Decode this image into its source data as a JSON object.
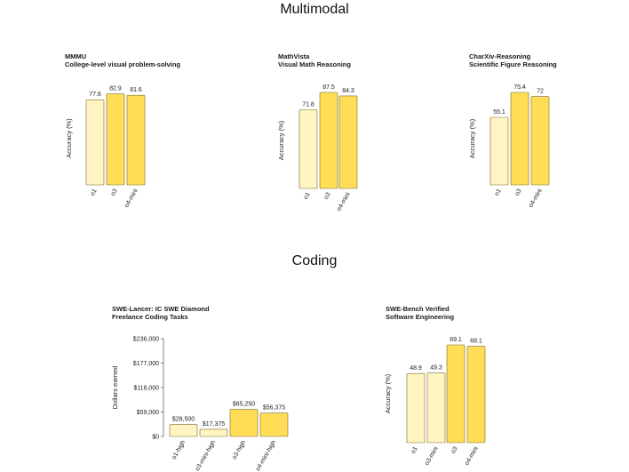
{
  "sections": [
    {
      "title": "Multimodal"
    },
    {
      "title": "Coding"
    }
  ],
  "colors": {
    "light": "#fff4c2",
    "dark": "#ffdd57",
    "stroke": "#7a6a2a"
  },
  "chart_data": [
    {
      "type": "bar",
      "title": "MMMU",
      "subtitle": "College-level visual problem-solving",
      "ylabel": "Accuracy (%)",
      "categories": [
        "o1",
        "o3",
        "o4-mini"
      ],
      "values": [
        77.6,
        82.9,
        81.6
      ],
      "value_labels": [
        "77.6",
        "82.9",
        "81.6"
      ],
      "bar_colors": [
        "light",
        "dark",
        "dark"
      ],
      "ylim": [
        0,
        85
      ]
    },
    {
      "type": "bar",
      "title": "MathVista",
      "subtitle": "Visual Math Reasoning",
      "ylabel": "Accuracy (%)",
      "categories": [
        "o1",
        "o3",
        "o4-mini"
      ],
      "values": [
        71.8,
        87.5,
        84.3
      ],
      "value_labels": [
        "71.8",
        "87.5",
        "84.3"
      ],
      "bar_colors": [
        "light",
        "dark",
        "dark"
      ],
      "ylim": [
        0,
        87.5
      ]
    },
    {
      "type": "bar",
      "title": "CharXiv-Reasoning",
      "subtitle": "Scientific Figure Reasoning",
      "ylabel": "Accuracy (%)",
      "categories": [
        "o1",
        "o3",
        "o4-mini"
      ],
      "values": [
        55.1,
        75.4,
        72
      ],
      "value_labels": [
        "55.1",
        "75.4",
        "72"
      ],
      "bar_colors": [
        "light",
        "dark",
        "dark"
      ],
      "ylim": [
        0,
        75.4
      ]
    },
    {
      "type": "bar",
      "title": "SWE-Lancer: IC SWE Diamond",
      "subtitle": "Freelance Coding Tasks",
      "ylabel": "Dollars earned",
      "categories": [
        "o1-high",
        "o3-mini-high",
        "o3-high",
        "o4-mini-high"
      ],
      "values": [
        28500,
        17375,
        65250,
        56375
      ],
      "value_labels": [
        "$28,500",
        "$17,375",
        "$65,250",
        "$56,375"
      ],
      "bar_colors": [
        "light",
        "light",
        "dark",
        "dark"
      ],
      "ylim": [
        0,
        236000
      ],
      "yticks": [
        0,
        59000,
        118000,
        177000,
        236000
      ],
      "ytick_labels": [
        "$0",
        "$59,000",
        "$118,000",
        "$177,000",
        "$236,000"
      ]
    },
    {
      "type": "bar",
      "title": "SWE-Bench Verified",
      "subtitle": "Software Engineering",
      "ylabel": "Accuracy (%)",
      "categories": [
        "o1",
        "o3-mini",
        "o3",
        "o4-mini"
      ],
      "values": [
        48.9,
        49.3,
        69.1,
        68.1
      ],
      "value_labels": [
        "48.9",
        "49.3",
        "69.1",
        "68.1"
      ],
      "bar_colors": [
        "light",
        "light",
        "dark",
        "dark"
      ],
      "ylim": [
        0,
        69.1
      ]
    }
  ]
}
